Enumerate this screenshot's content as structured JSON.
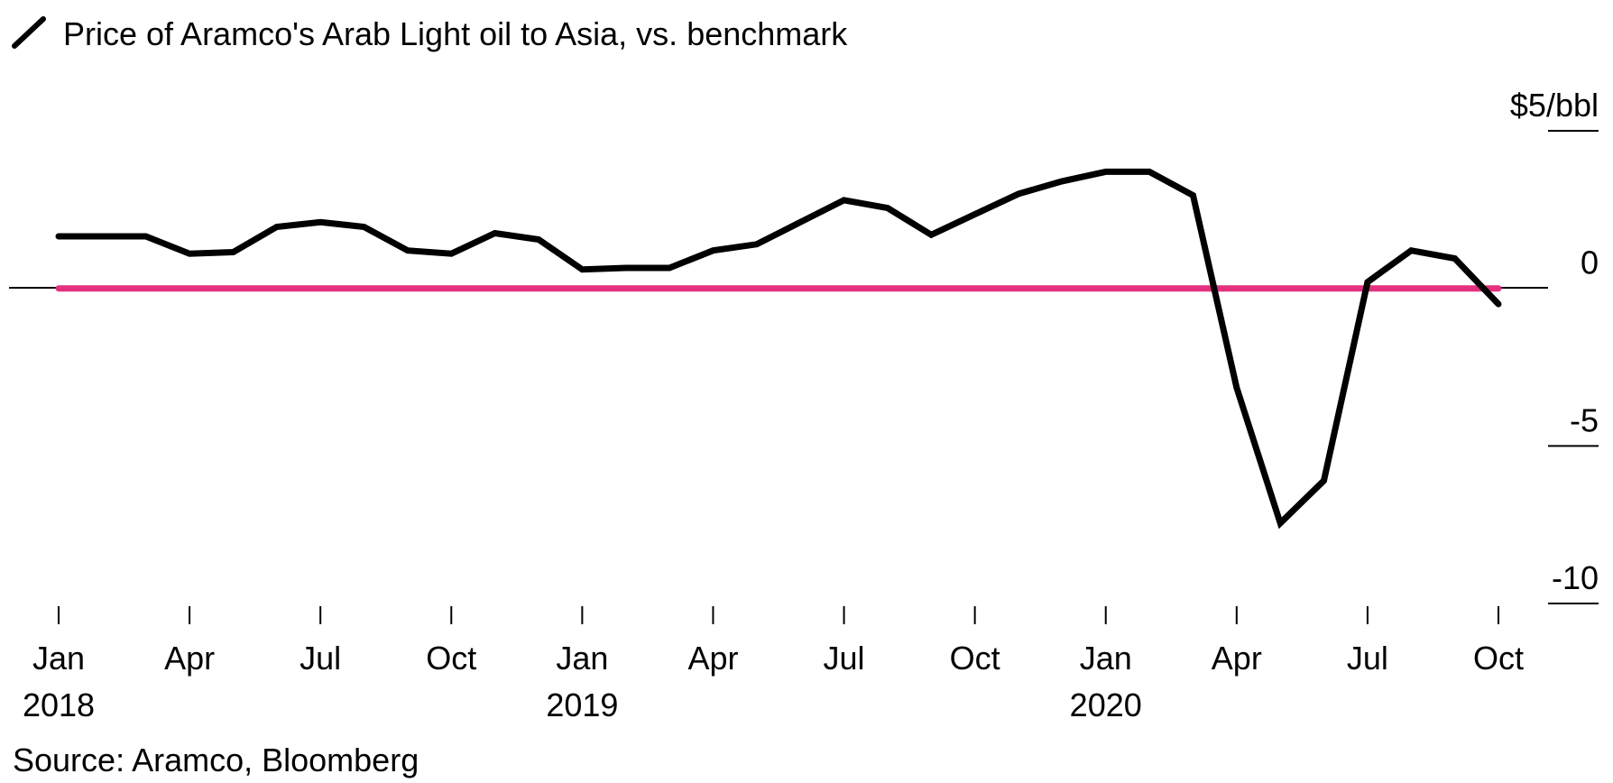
{
  "chart_data": {
    "type": "line",
    "legend": [
      {
        "name": "Price of Aramco's Arab Light oil to Asia, vs. benchmark",
        "color": "#000000"
      }
    ],
    "y_unit_label": "$5/bbl",
    "ylim": [
      -10,
      5
    ],
    "y_ticks": [
      {
        "value": 5,
        "label": "$5/bbl"
      },
      {
        "value": 0,
        "label": "0"
      },
      {
        "value": -5,
        "label": "-5"
      },
      {
        "value": -10,
        "label": "-10"
      }
    ],
    "x_ticks": [
      {
        "date": "2018-01",
        "label": "Jan",
        "year": "2018"
      },
      {
        "date": "2018-04",
        "label": "Apr",
        "year": ""
      },
      {
        "date": "2018-07",
        "label": "Jul",
        "year": ""
      },
      {
        "date": "2018-10",
        "label": "Oct",
        "year": ""
      },
      {
        "date": "2019-01",
        "label": "Jan",
        "year": "2019"
      },
      {
        "date": "2019-04",
        "label": "Apr",
        "year": ""
      },
      {
        "date": "2019-07",
        "label": "Jul",
        "year": ""
      },
      {
        "date": "2019-10",
        "label": "Oct",
        "year": ""
      },
      {
        "date": "2020-01",
        "label": "Jan",
        "year": "2020"
      },
      {
        "date": "2020-04",
        "label": "Apr",
        "year": ""
      },
      {
        "date": "2020-07",
        "label": "Jul",
        "year": ""
      },
      {
        "date": "2020-10",
        "label": "Oct",
        "year": ""
      }
    ],
    "series": [
      {
        "name": "Price of Aramco's Arab Light oil to Asia, vs. benchmark",
        "color": "#000000",
        "points": [
          {
            "x": "2018-01",
            "y": 1.65
          },
          {
            "x": "2018-02",
            "y": 1.65
          },
          {
            "x": "2018-03",
            "y": 1.65
          },
          {
            "x": "2018-04",
            "y": 1.1
          },
          {
            "x": "2018-05",
            "y": 1.15
          },
          {
            "x": "2018-06",
            "y": 1.95
          },
          {
            "x": "2018-07",
            "y": 2.1
          },
          {
            "x": "2018-08",
            "y": 1.95
          },
          {
            "x": "2018-09",
            "y": 1.2
          },
          {
            "x": "2018-10",
            "y": 1.1
          },
          {
            "x": "2018-11",
            "y": 1.75
          },
          {
            "x": "2018-12",
            "y": 1.55
          },
          {
            "x": "2019-01",
            "y": 0.6
          },
          {
            "x": "2019-02",
            "y": 0.65
          },
          {
            "x": "2019-03",
            "y": 0.65
          },
          {
            "x": "2019-04",
            "y": 1.2
          },
          {
            "x": "2019-05",
            "y": 1.4
          },
          {
            "x": "2019-06",
            "y": 2.1
          },
          {
            "x": "2019-07",
            "y": 2.8
          },
          {
            "x": "2019-08",
            "y": 2.55
          },
          {
            "x": "2019-09",
            "y": 1.7
          },
          {
            "x": "2019-10",
            "y": 2.35
          },
          {
            "x": "2019-11",
            "y": 3.0
          },
          {
            "x": "2019-12",
            "y": 3.4
          },
          {
            "x": "2020-01",
            "y": 3.7
          },
          {
            "x": "2020-02",
            "y": 3.7
          },
          {
            "x": "2020-03",
            "y": 2.95
          },
          {
            "x": "2020-04",
            "y": -3.15
          },
          {
            "x": "2020-05",
            "y": -7.45
          },
          {
            "x": "2020-06",
            "y": -6.1
          },
          {
            "x": "2020-07",
            "y": 0.2
          },
          {
            "x": "2020-08",
            "y": 1.2
          },
          {
            "x": "2020-09",
            "y": 0.95
          },
          {
            "x": "2020-10",
            "y": -0.5
          }
        ]
      },
      {
        "name": "benchmark",
        "color": "#e3317f",
        "points": [
          {
            "x": "2018-01",
            "y": 0
          },
          {
            "x": "2020-10",
            "y": 0
          }
        ]
      }
    ],
    "source": "Source: Aramco, Bloomberg",
    "grid": false
  }
}
